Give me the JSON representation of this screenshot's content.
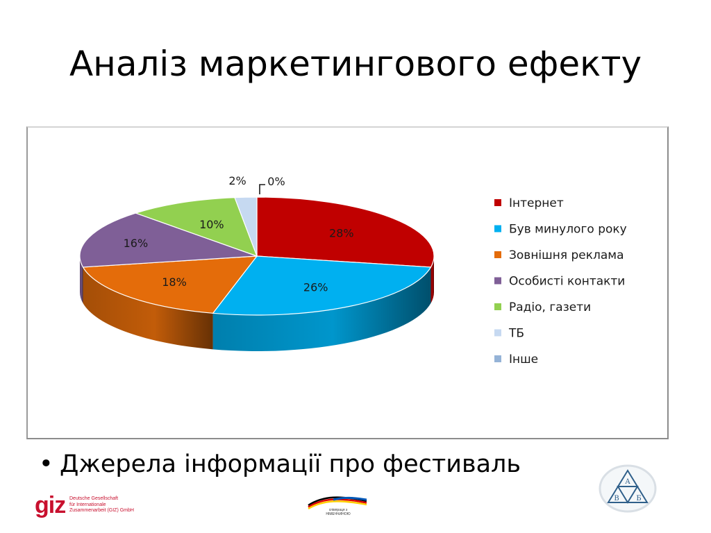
{
  "slide": {
    "title": "Аналіз маркетингового ефекту",
    "bullet": "Джерела інформації про фестиваль",
    "bullet_symbol": "•"
  },
  "chart_data": {
    "type": "pie",
    "title": "",
    "legend_position": "right",
    "series": [
      {
        "label": "Інтернет",
        "value": 28,
        "data_label": "28%",
        "color": "#C00000"
      },
      {
        "label": "Був минулого року",
        "value": 26,
        "data_label": "26%",
        "color": "#00B0F0"
      },
      {
        "label": "Зовнішня реклама",
        "value": 18,
        "data_label": "18%",
        "color": "#E46C0A"
      },
      {
        "label": "Особисті контакти",
        "value": 16,
        "data_label": "16%",
        "color": "#7F5F97"
      },
      {
        "label": "Радіо, газети",
        "value": 10,
        "data_label": "10%",
        "color": "#92D050"
      },
      {
        "label": "ТБ",
        "value": 2,
        "data_label": "2%",
        "color": "#C6D9F1"
      },
      {
        "label": "Інше",
        "value": 0,
        "data_label": "0%",
        "color": "#95B3D7"
      }
    ]
  },
  "logos": {
    "giz_mark": "giz",
    "giz_lines": [
      "Deutsche Gesellschaft",
      "für Internationale",
      "Zusammenarbeit (GIZ) GmbH"
    ],
    "cooperation_lines": [
      "співпраця з",
      "НІМЕЧЧИНОЮ"
    ],
    "abv_letters": [
      "А",
      "В",
      "Б"
    ]
  }
}
